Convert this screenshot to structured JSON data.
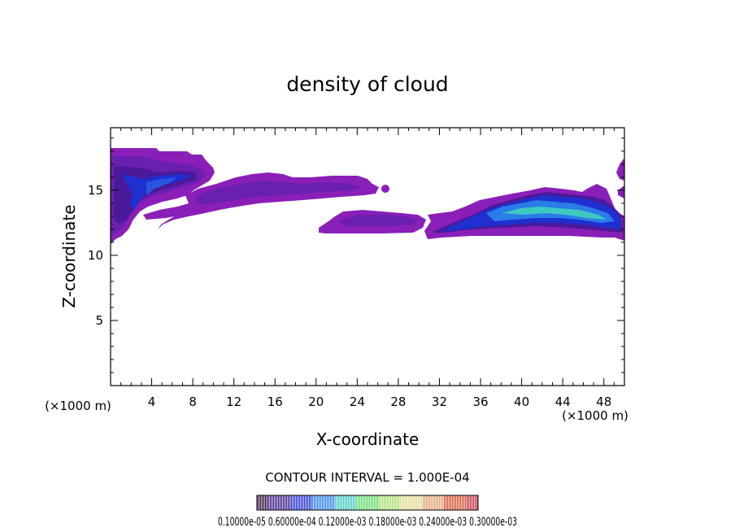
{
  "chart_data": {
    "type": "heatmap",
    "title": "density of cloud",
    "xlabel": "X-coordinate",
    "ylabel": "Z-coordinate",
    "x_unit": "(×1000 m)",
    "y_unit": "(×1000 m)",
    "xlim": [
      0,
      50
    ],
    "ylim": [
      0,
      19.8
    ],
    "x_ticks": [
      4,
      8,
      12,
      16,
      20,
      24,
      28,
      32,
      36,
      40,
      44,
      48
    ],
    "y_ticks": [
      5,
      10,
      15
    ],
    "contour_interval_text": "CONTOUR INTERVAL = 1.000E-04",
    "colorbar_labels_text": "0.10000e-05 0.60000e-04 0.12000e-03 0.18000e-03 0.24000e-03 0.30000e-03",
    "colormap": [
      "#2b0a3d",
      "#3a1a8a",
      "#1f2fd0",
      "#2a7de8",
      "#3ec9c0",
      "#5fd86a",
      "#a6df6a",
      "#e0d890",
      "#e0a070",
      "#d05030",
      "#c03040"
    ],
    "regions": [
      {
        "name": "upper-left cloud",
        "x": [
          0,
          10.2
        ],
        "z": [
          11.2,
          18.2
        ],
        "peak_level": "blue"
      },
      {
        "name": "mid-level band",
        "x": [
          4.5,
          26.5
        ],
        "z": [
          12.2,
          16.3
        ],
        "peak_level": "violet"
      },
      {
        "name": "central cloud",
        "x": [
          20,
          31
        ],
        "z": [
          11.7,
          13.6
        ],
        "peak_level": "violet"
      },
      {
        "name": "right cloud",
        "x": [
          30.5,
          50
        ],
        "z": [
          11.2,
          15.4
        ],
        "peak_level": "light-blue"
      },
      {
        "name": "right edge cloud",
        "x": [
          49,
          50
        ],
        "z": [
          15.5,
          17.3
        ],
        "peak_level": "violet"
      }
    ]
  }
}
